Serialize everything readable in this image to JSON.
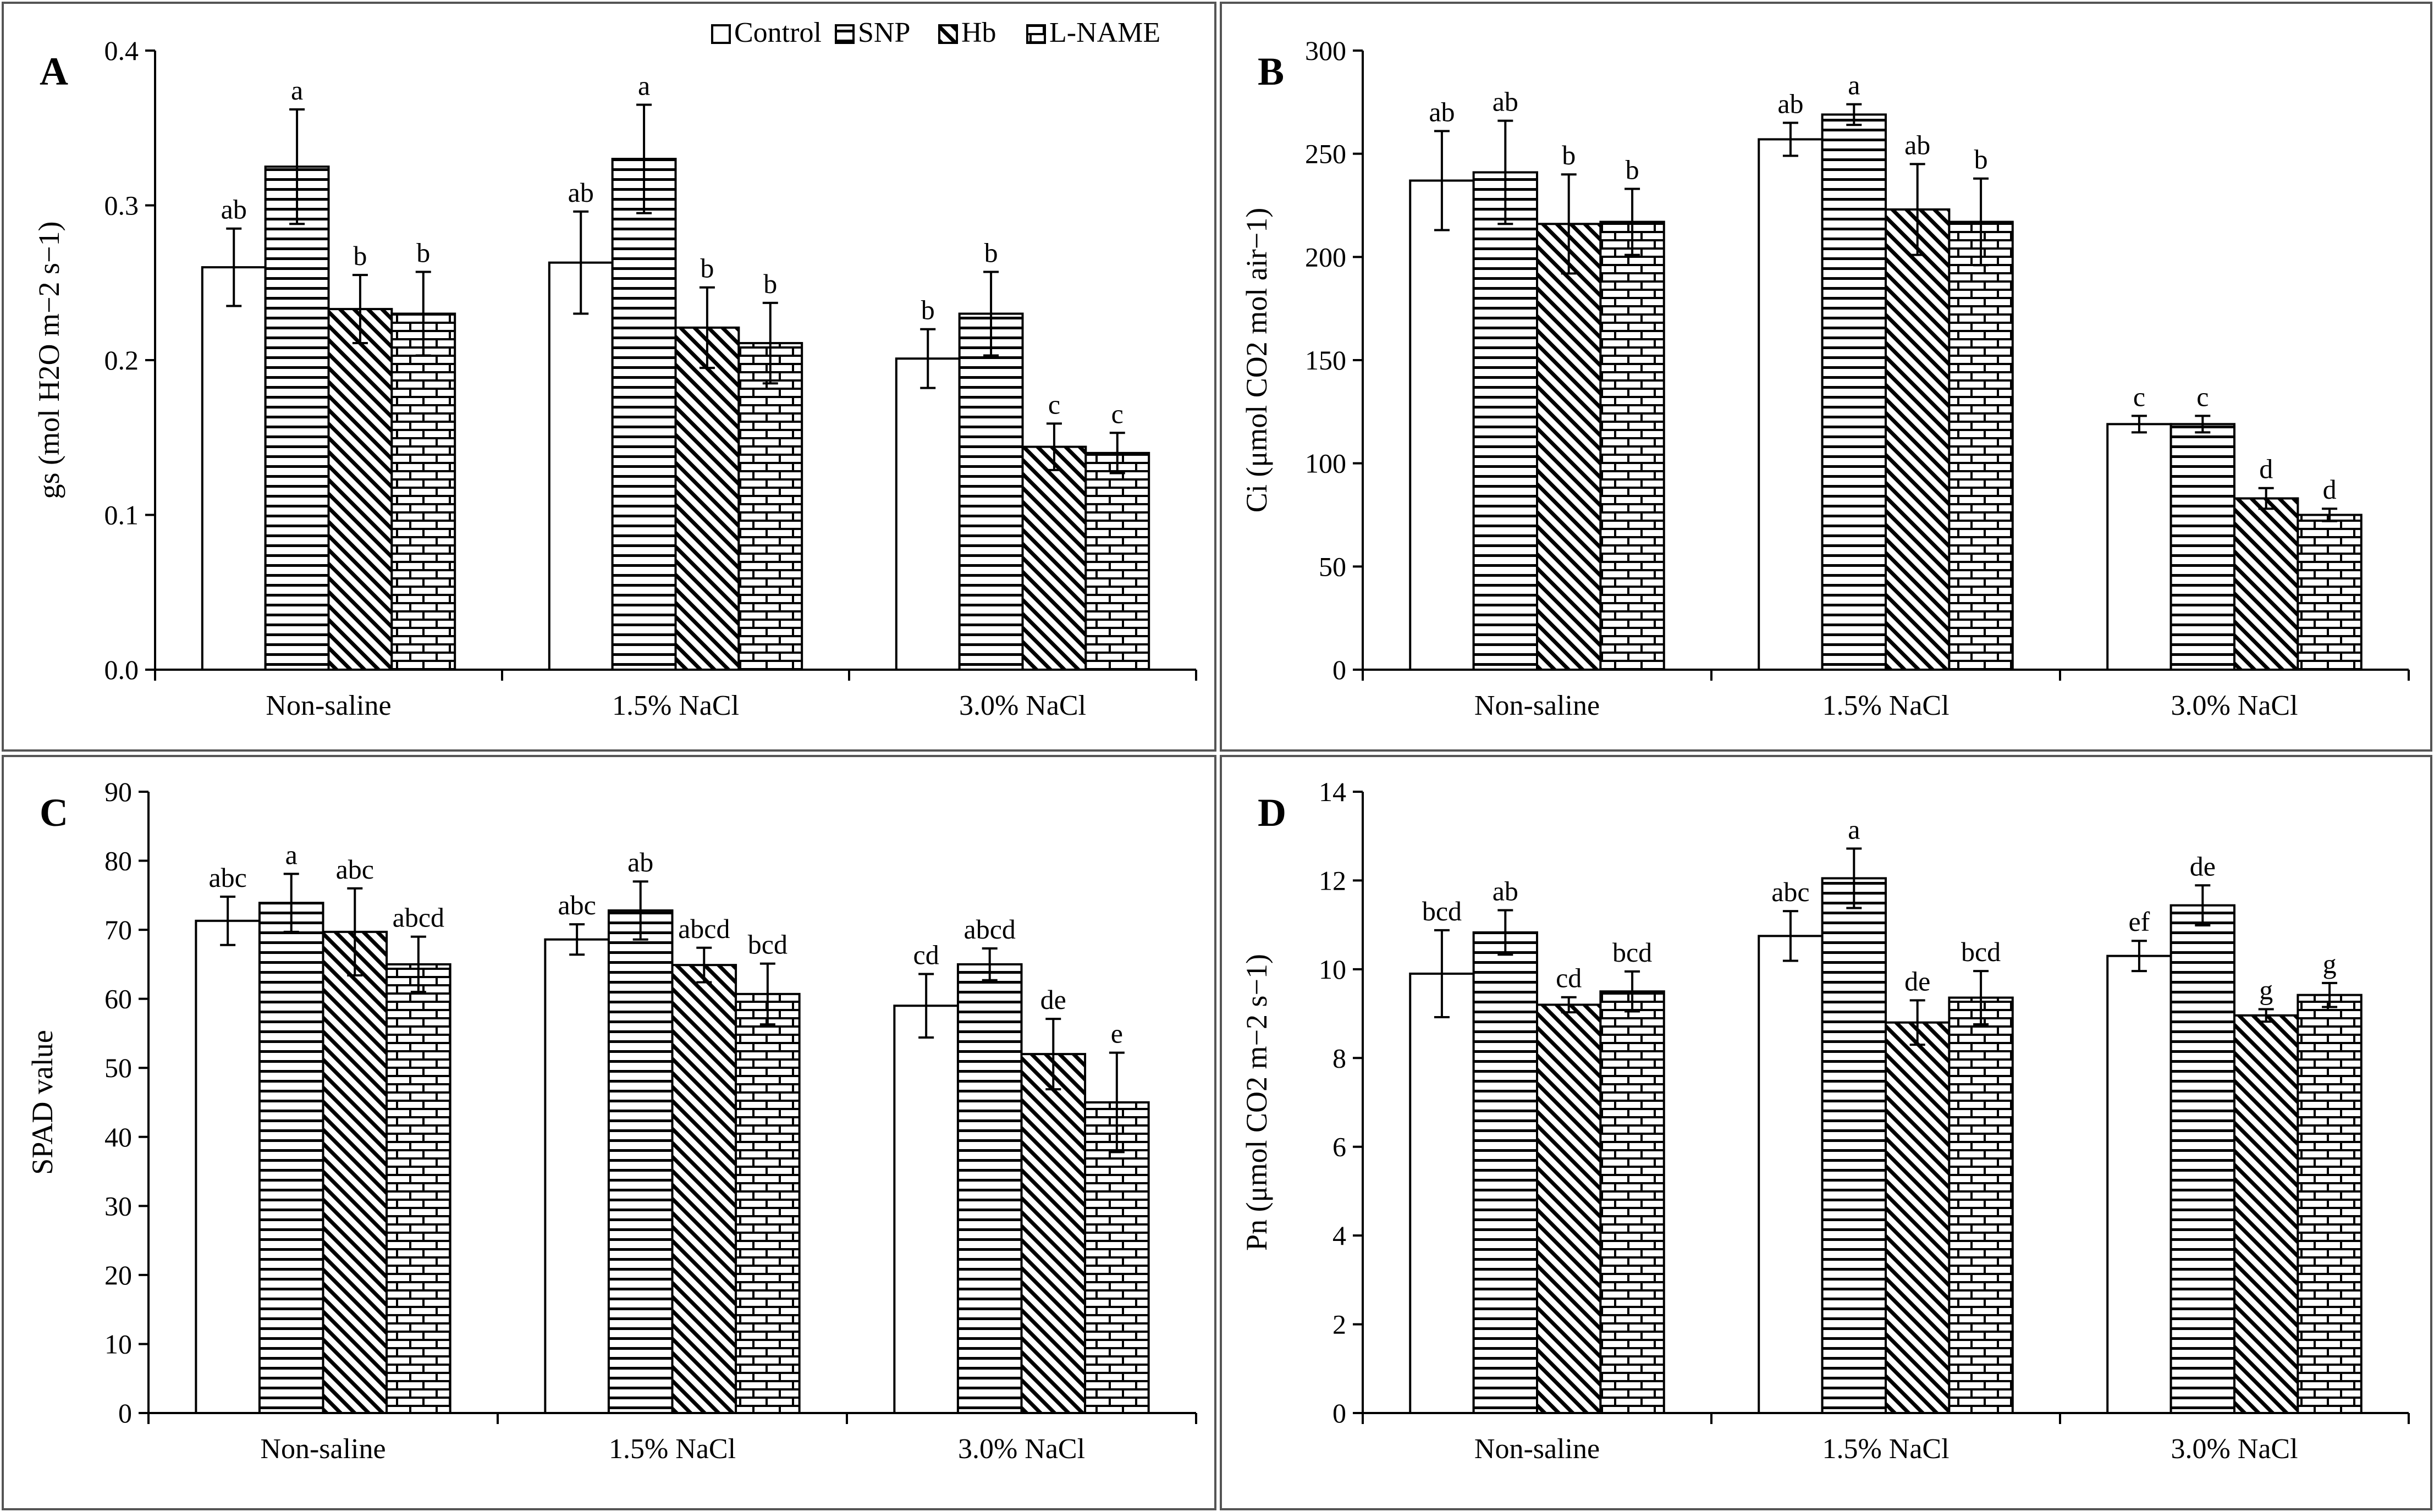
{
  "legend": {
    "placement": "top-right",
    "entries": [
      {
        "label": "Control",
        "pattern": "none"
      },
      {
        "label": "SNP",
        "pattern": "horizontal-lines"
      },
      {
        "label": "Hb",
        "pattern": "diagonal-lines"
      },
      {
        "label": "L-NAME",
        "pattern": "brick"
      }
    ]
  },
  "chart_data": [
    {
      "panel": "A",
      "type": "bar",
      "categories": [
        "Non-saline",
        "1.5% NaCl",
        "3.0% NaCl"
      ],
      "ylabel": "gs (mol H2O m−2 s−1)",
      "ylim": [
        0,
        0.4
      ],
      "ytick_labels": [
        "0.0",
        "0.1",
        "0.2",
        "0.3",
        "0.4"
      ],
      "series": [
        {
          "name": "Control",
          "values": [
            0.26,
            0.263,
            0.201
          ],
          "errors": [
            0.025,
            0.033,
            0.019
          ],
          "letters": [
            "ab",
            "ab",
            "b"
          ]
        },
        {
          "name": "SNP",
          "values": [
            0.325,
            0.33,
            0.23
          ],
          "errors": [
            0.037,
            0.035,
            0.027
          ],
          "letters": [
            "a",
            "a",
            "b"
          ]
        },
        {
          "name": "Hb",
          "values": [
            0.233,
            0.221,
            0.144
          ],
          "errors": [
            0.022,
            0.026,
            0.015
          ],
          "letters": [
            "b",
            "b",
            "c"
          ]
        },
        {
          "name": "L-NAME",
          "values": [
            0.23,
            0.211,
            0.14
          ],
          "errors": [
            0.027,
            0.026,
            0.013
          ],
          "letters": [
            "b",
            "b",
            "c"
          ]
        }
      ]
    },
    {
      "panel": "B",
      "type": "bar",
      "categories": [
        "Non-saline",
        "1.5% NaCl",
        "3.0% NaCl"
      ],
      "ylabel": "Ci (μmol CO2 mol air−1)",
      "ylim": [
        0,
        300
      ],
      "ytick_labels": [
        "0",
        "50",
        "100",
        "150",
        "200",
        "250",
        "300"
      ],
      "series": [
        {
          "name": "Control",
          "values": [
            237,
            257,
            119
          ],
          "errors": [
            24,
            8,
            4
          ],
          "letters": [
            "ab",
            "ab",
            "c"
          ]
        },
        {
          "name": "SNP",
          "values": [
            241,
            269,
            119
          ],
          "errors": [
            25,
            5,
            4
          ],
          "letters": [
            "ab",
            "a",
            "c"
          ]
        },
        {
          "name": "Hb",
          "values": [
            216,
            223,
            83
          ],
          "errors": [
            24,
            22,
            5
          ],
          "letters": [
            "b",
            "ab",
            "d"
          ]
        },
        {
          "name": "L-NAME",
          "values": [
            217,
            217,
            75
          ],
          "errors": [
            16,
            21,
            3
          ],
          "letters": [
            "b",
            "b",
            "d"
          ]
        }
      ]
    },
    {
      "panel": "C",
      "type": "bar",
      "categories": [
        "Non-saline",
        "1.5% NaCl",
        "3.0% NaCl"
      ],
      "ylabel": "SPAD value",
      "ylim": [
        0,
        90
      ],
      "ytick_labels": [
        "0",
        "10",
        "20",
        "30",
        "40",
        "50",
        "60",
        "70",
        "80",
        "90"
      ],
      "series": [
        {
          "name": "Control",
          "values": [
            71.3,
            68.6,
            59
          ],
          "errors": [
            3.5,
            2.2,
            4.6
          ],
          "letters": [
            "abc",
            "abc",
            "cd"
          ]
        },
        {
          "name": "SNP",
          "values": [
            73.9,
            72.8,
            65
          ],
          "errors": [
            4.2,
            4.2,
            2.3
          ],
          "letters": [
            "a",
            "ab",
            "abcd"
          ]
        },
        {
          "name": "Hb",
          "values": [
            69.7,
            64.9,
            52
          ],
          "errors": [
            6.3,
            2.5,
            5.1
          ],
          "letters": [
            "abc",
            "abcd",
            "de"
          ]
        },
        {
          "name": "L-NAME",
          "values": [
            65,
            60.7,
            45
          ],
          "errors": [
            4,
            4.4,
            7.2
          ],
          "letters": [
            "abcd",
            "bcd",
            "e"
          ]
        }
      ]
    },
    {
      "panel": "D",
      "type": "bar",
      "categories": [
        "Non-saline",
        "1.5% NaCl",
        "3.0% NaCl"
      ],
      "ylabel": "Pn (μmol CO2 m−2 s−1)",
      "ylim": [
        0,
        14
      ],
      "ytick_labels": [
        "0",
        "2",
        "4",
        "6",
        "8",
        "10",
        "12",
        "14"
      ],
      "series": [
        {
          "name": "Control",
          "values": [
            9.9,
            10.75,
            10.3
          ],
          "errors": [
            0.98,
            0.56,
            0.34
          ],
          "letters": [
            "bcd",
            "abc",
            "ef"
          ]
        },
        {
          "name": "SNP",
          "values": [
            10.83,
            12.05,
            11.44
          ],
          "errors": [
            0.5,
            0.67,
            0.45
          ],
          "letters": [
            "ab",
            "a",
            "de"
          ]
        },
        {
          "name": "Hb",
          "values": [
            9.2,
            8.8,
            8.96
          ],
          "errors": [
            0.17,
            0.5,
            0.14
          ],
          "letters": [
            "cd",
            "de",
            "g"
          ]
        },
        {
          "name": "L-NAME",
          "values": [
            9.5,
            9.36,
            9.42
          ],
          "errors": [
            0.45,
            0.6,
            0.27
          ],
          "letters": [
            "bcd",
            "bcd",
            "g"
          ]
        }
      ]
    }
  ]
}
